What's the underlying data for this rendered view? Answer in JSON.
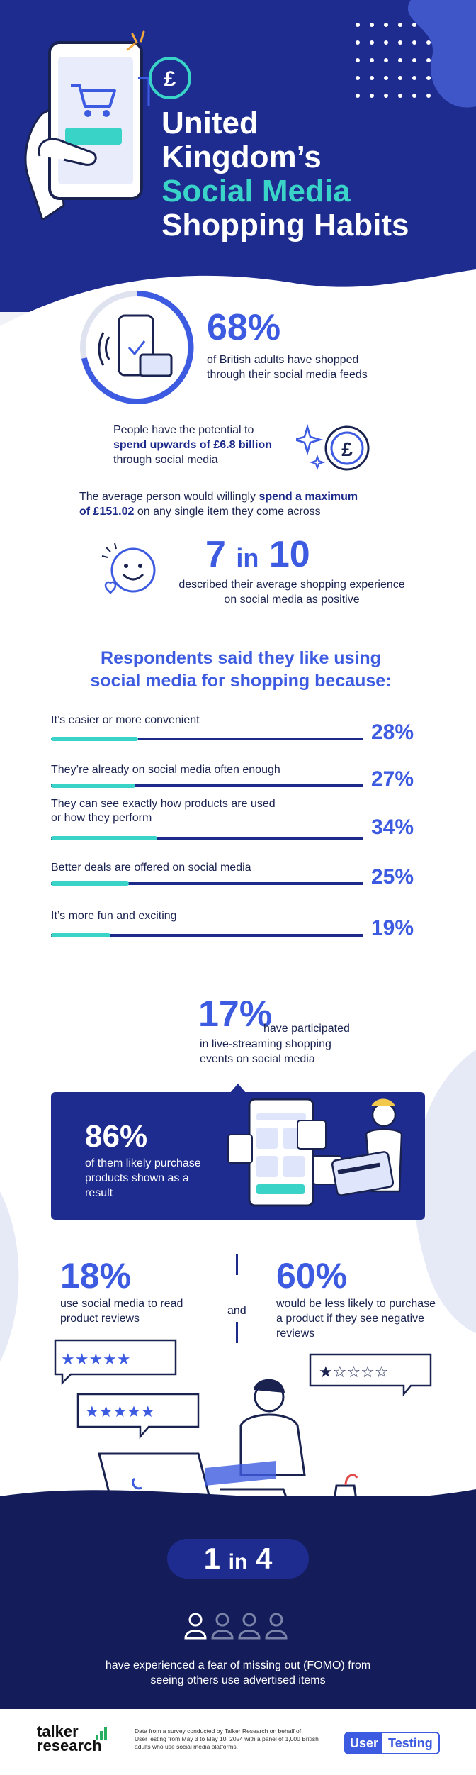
{
  "header": {
    "title_line1": "United",
    "title_line2": "Kingdom’s",
    "title_line3": "Social Media",
    "title_line4": "Shopping Habits"
  },
  "stat1": {
    "value": "68%",
    "text": "of British adults have shopped through their social media feeds"
  },
  "stat2": {
    "text_pre": "People have the potential to",
    "text_bold": "spend upwards of £6.8 billion",
    "text_post": "through social media"
  },
  "stat3": {
    "text_pre": "The average person would willingly",
    "text_bold1": "spend a maximum",
    "text_bold2": "of £151.02",
    "text_post": "on any single item they come across"
  },
  "stat4": {
    "value_a": "7",
    "value_in": "in",
    "value_b": "10",
    "text": "described their average shopping experience on social media as positive"
  },
  "reasons": {
    "heading1": "Respondents said they like using",
    "heading2": "social media for shopping because:",
    "items": [
      {
        "label": "It’s easier or more convenient",
        "pct": "28%",
        "value": 28
      },
      {
        "label": "They’re already on social media often enough",
        "pct": "27%",
        "value": 27
      },
      {
        "label": "They can see exactly how products are used or how they perform",
        "pct": "34%",
        "value": 34
      },
      {
        "label": "Better deals are offered on social media",
        "pct": "25%",
        "value": 25
      },
      {
        "label": "It’s more fun and exciting",
        "pct": "19%",
        "value": 19
      }
    ]
  },
  "livestream": {
    "value": "17%",
    "text1": "have participated",
    "text2": "in live-streaming shopping",
    "text3": "events on social media"
  },
  "purchase": {
    "value": "86%",
    "text": "of them likely purchase products shown as a result"
  },
  "reviews": {
    "left_value": "18%",
    "left_text": "use social media to read product reviews",
    "and": "and",
    "right_value": "60%",
    "right_text": "would be less likely to purchase a product if they see negative reviews"
  },
  "fomo": {
    "value_a": "1",
    "value_in": "in",
    "value_b": "4",
    "text": "have experienced a fear of missing out (FOMO) from seeing others use advertised items"
  },
  "footer": {
    "brand_left_1": "talker",
    "brand_left_2": "research",
    "note": "Data from a survey conducted by Talker Research on behalf of UserTesting from May 3 to May 10, 2024 with a panel of 1,000 British adults who use social media platforms.",
    "brand_right_1": "User",
    "brand_right_2": "Testing"
  },
  "colors": {
    "navy": "#1f2c8f",
    "blue": "#3d5be0",
    "teal": "#3ad3c8",
    "dark": "#141d5a"
  }
}
